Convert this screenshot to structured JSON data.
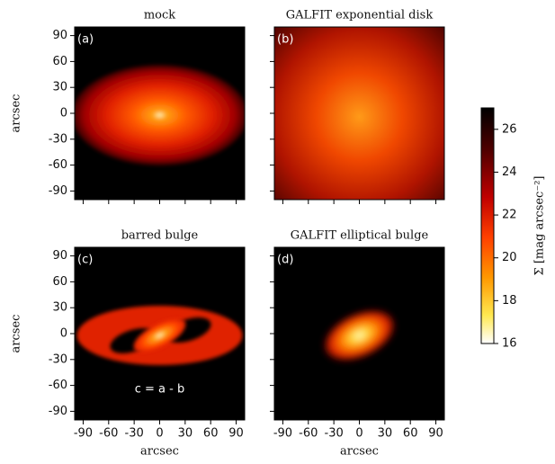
{
  "chart_data": [
    {
      "type": "image",
      "title": "mock",
      "panel_label": "(a)",
      "ylabel": "arcsec",
      "xlim": [
        -100,
        100
      ],
      "ylim": [
        -100,
        100
      ],
      "xticks": [
        -90,
        -60,
        -30,
        0,
        30,
        60,
        90
      ],
      "yticks": [
        -90,
        -60,
        -30,
        0,
        30,
        60,
        90
      ]
    },
    {
      "type": "image",
      "title": "GALFIT exponential disk",
      "panel_label": "(b)",
      "xlim": [
        -100,
        100
      ],
      "ylim": [
        -100,
        100
      ],
      "xticks": [
        -90,
        -60,
        -30,
        0,
        30,
        60,
        90
      ],
      "yticks": [
        -90,
        -60,
        -30,
        0,
        30,
        60,
        90
      ]
    },
    {
      "type": "image",
      "title": "barred bulge",
      "panel_label": "(c)",
      "annotation": "c = a - b",
      "xlabel": "arcsec",
      "ylabel": "arcsec",
      "xlim": [
        -100,
        100
      ],
      "ylim": [
        -100,
        100
      ],
      "xticks": [
        -90,
        -60,
        -30,
        0,
        30,
        60,
        90
      ],
      "yticks": [
        -90,
        -60,
        -30,
        0,
        30,
        60,
        90
      ]
    },
    {
      "type": "image",
      "title": "GALFIT elliptical bulge",
      "panel_label": "(d)",
      "xlabel": "arcsec",
      "xlim": [
        -100,
        100
      ],
      "ylim": [
        -100,
        100
      ],
      "xticks": [
        -90,
        -60,
        -30,
        0,
        30,
        60,
        90
      ],
      "yticks": [
        -90,
        -60,
        -30,
        0,
        30,
        60,
        90
      ]
    },
    {
      "type": "colorbar",
      "label": "Σ [mag arcsec⁻²]",
      "ylim": [
        16,
        27
      ],
      "yticks": [
        16,
        18,
        20,
        22,
        24,
        26
      ]
    }
  ]
}
